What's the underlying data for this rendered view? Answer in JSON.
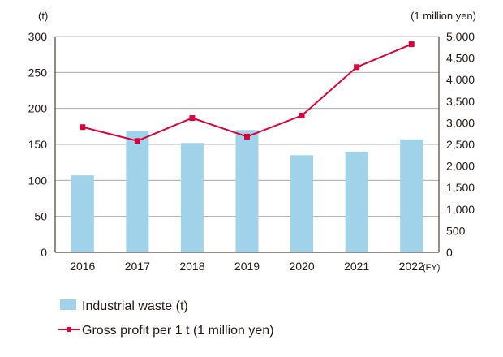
{
  "chart_data": {
    "type": "bar+line",
    "categories": [
      "2016",
      "2017",
      "2018",
      "2019",
      "2020",
      "2021",
      "2022"
    ],
    "series": [
      {
        "name": "Industrial waste (t)",
        "type": "bar",
        "axis": "left",
        "values": [
          107,
          169,
          152,
          170,
          135,
          140,
          157
        ]
      },
      {
        "name": "Gross profit per 1 t (1 million yen)",
        "type": "line",
        "axis": "right",
        "values": [
          2900,
          2580,
          3110,
          2680,
          3170,
          4290,
          4820
        ]
      }
    ],
    "y_left": {
      "unit": "(t)",
      "ylim": [
        0,
        300
      ],
      "ticks": [
        "0",
        "50",
        "100",
        "150",
        "200",
        "250",
        "300"
      ]
    },
    "y_right": {
      "unit": "(1 million yen)",
      "ylim": [
        0,
        5000
      ],
      "ticks": [
        "0",
        "500",
        "1,000",
        "1,500",
        "2,000",
        "2,500",
        "3,000",
        "3,500",
        "4,000",
        "4,500",
        "5,000"
      ]
    },
    "x_unit": "(FY)",
    "grid": "horizontal",
    "legend_position": "bottom-left",
    "colors": {
      "bar": "#a0d2e9",
      "line": "#d7003a",
      "grid": "#9e9e9e",
      "axis": "#231815"
    }
  }
}
